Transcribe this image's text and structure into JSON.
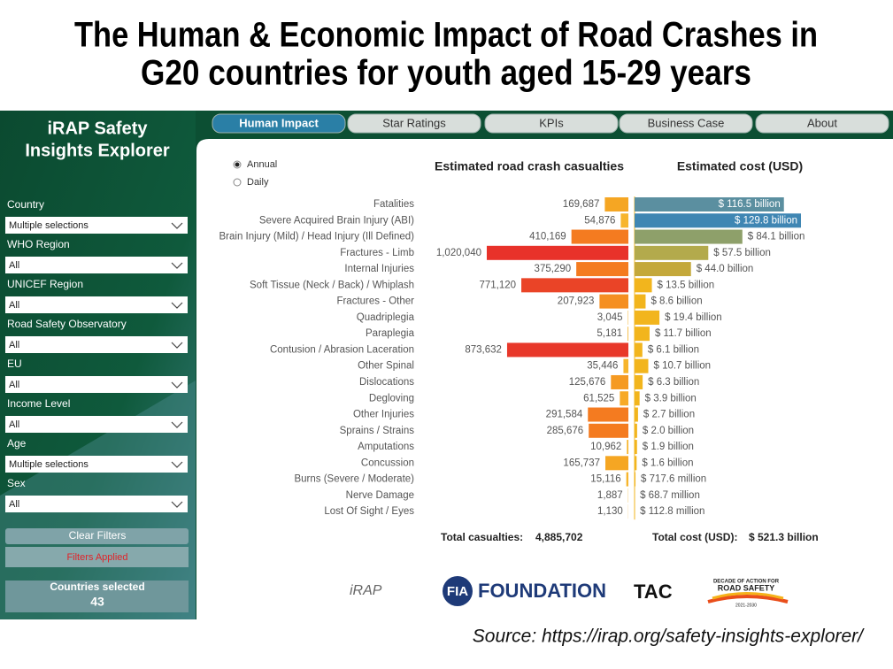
{
  "header": {
    "title": [
      "The Human & Economic Impact of Road Crashes in",
      "G20 countries for youth aged 15-29 years"
    ]
  },
  "sidebar": {
    "title": [
      "iRAP Safety",
      "Insights Explorer"
    ],
    "filters": [
      {
        "label": "Country",
        "value": "Multiple selections"
      },
      {
        "label": "WHO Region",
        "value": "All"
      },
      {
        "label": "UNICEF Region",
        "value": "All"
      },
      {
        "label": "Road Safety Observatory",
        "value": "All"
      },
      {
        "label": "EU",
        "value": "All"
      },
      {
        "label": "Income Level",
        "value": "All"
      },
      {
        "label": "Age",
        "value": "Multiple selections"
      },
      {
        "label": "Sex",
        "value": "All"
      }
    ],
    "clear_button": "Clear Filters",
    "status": "Filters Applied",
    "countries": {
      "label": "Countries selected",
      "value": 43
    }
  },
  "tabs": [
    "Human Impact",
    "Star Ratings",
    "KPIs",
    "Business Case",
    "About"
  ],
  "active_tab": 0,
  "period": {
    "options": [
      "Annual",
      "Daily"
    ],
    "selected": 0
  },
  "chart_data": [
    {
      "type": "bar",
      "title": "Estimated road crash casualties",
      "categories": [
        "Fatalities",
        "Severe Acquired Brain Injury (ABI)",
        "Brain Injury (Mild) / Head Injury (Ill Defined)",
        "Fractures - Limb",
        "Internal Injuries",
        "Soft Tissue (Neck / Back) / Whiplash",
        "Fractures - Other",
        "Quadriplegia",
        "Paraplegia",
        "Contusion / Abrasion Laceration",
        "Other Spinal",
        "Dislocations",
        "Degloving",
        "Other Injuries",
        "Sprains / Strains",
        "Amputations",
        "Concussion",
        "Burns (Severe / Moderate)",
        "Nerve Damage",
        "Lost Of Sight / Eyes"
      ],
      "values": [
        169687,
        54876,
        410169,
        1020040,
        375290,
        771120,
        207923,
        3045,
        5181,
        873632,
        35446,
        125676,
        61525,
        291584,
        285676,
        10962,
        165737,
        15116,
        1887,
        1130
      ],
      "value_labels": [
        "169,687",
        "54,876",
        "410,169",
        "1,020,040",
        "375,290",
        "771,120",
        "207,923",
        "3,045",
        "5,181",
        "873,632",
        "35,446",
        "125,676",
        "61,525",
        "291,584",
        "285,676",
        "10,962",
        "165,737",
        "15,116",
        "1,887",
        "1,130"
      ],
      "colors": [
        "#f5a623",
        "#f7b52c",
        "#f47b20",
        "#e8322a",
        "#f47b20",
        "#ea4427",
        "#f58f22",
        "#f7b52c",
        "#f7b52c",
        "#e8382a",
        "#f7b52c",
        "#f59a22",
        "#f7aa28",
        "#f47b20",
        "#f47b20",
        "#f7b52c",
        "#f5a623",
        "#f7b52c",
        "#f7b52c",
        "#f7b52c"
      ]
    },
    {
      "type": "bar",
      "title": "Estimated cost (USD)",
      "values": [
        116.5,
        129.8,
        84.1,
        57.5,
        44.0,
        13.5,
        8.6,
        19.4,
        11.7,
        6.1,
        10.7,
        6.3,
        3.9,
        2.7,
        2.0,
        1.9,
        1.6,
        0.7176,
        0.0687,
        0.1128
      ],
      "value_labels": [
        "$ 116.5 billion",
        "$ 129.8 billion",
        "$ 84.1 billion",
        "$ 57.5 billion",
        "$ 44.0 billion",
        "$ 13.5 billion",
        "$ 8.6 billion",
        "$ 19.4 billion",
        "$ 11.7 billion",
        "$ 6.1 billion",
        "$ 10.7 billion",
        "$ 6.3 billion",
        "$ 3.9 billion",
        "$ 2.7 billion",
        "$ 2.0 billion",
        "$ 1.9 billion",
        "$ 1.6 billion",
        "$ 717.6 million",
        "$ 68.7 million",
        "$ 112.8 million"
      ],
      "colors": [
        "#5b8fa0",
        "#3f86b3",
        "#8ea06a",
        "#b3aa4c",
        "#c4a83a",
        "#f2b51d",
        "#f2b51d",
        "#f2b51d",
        "#f2b51d",
        "#f2b51d",
        "#f2b51d",
        "#f2b51d",
        "#f2b51d",
        "#f2b51d",
        "#f2b51d",
        "#f2b51d",
        "#f2b51d",
        "#f2b51d",
        "#f2b51d",
        "#f2b51d"
      ]
    }
  ],
  "totals": {
    "casualties_label": "Total casualties:",
    "casualties": "4,885,702",
    "cost_label": "Total cost (USD):",
    "cost": "$ 521.3 billion"
  },
  "logos": {
    "irap": "iRAP",
    "fia": "FIA",
    "foundation": "FOUNDATION",
    "tac": "TAC",
    "decade": "DECADE OF ACTION FOR",
    "road_safety": "ROAD SAFETY",
    "years": "2021-2030"
  },
  "source": "Source: https://irap.org/safety-insights-explorer/"
}
